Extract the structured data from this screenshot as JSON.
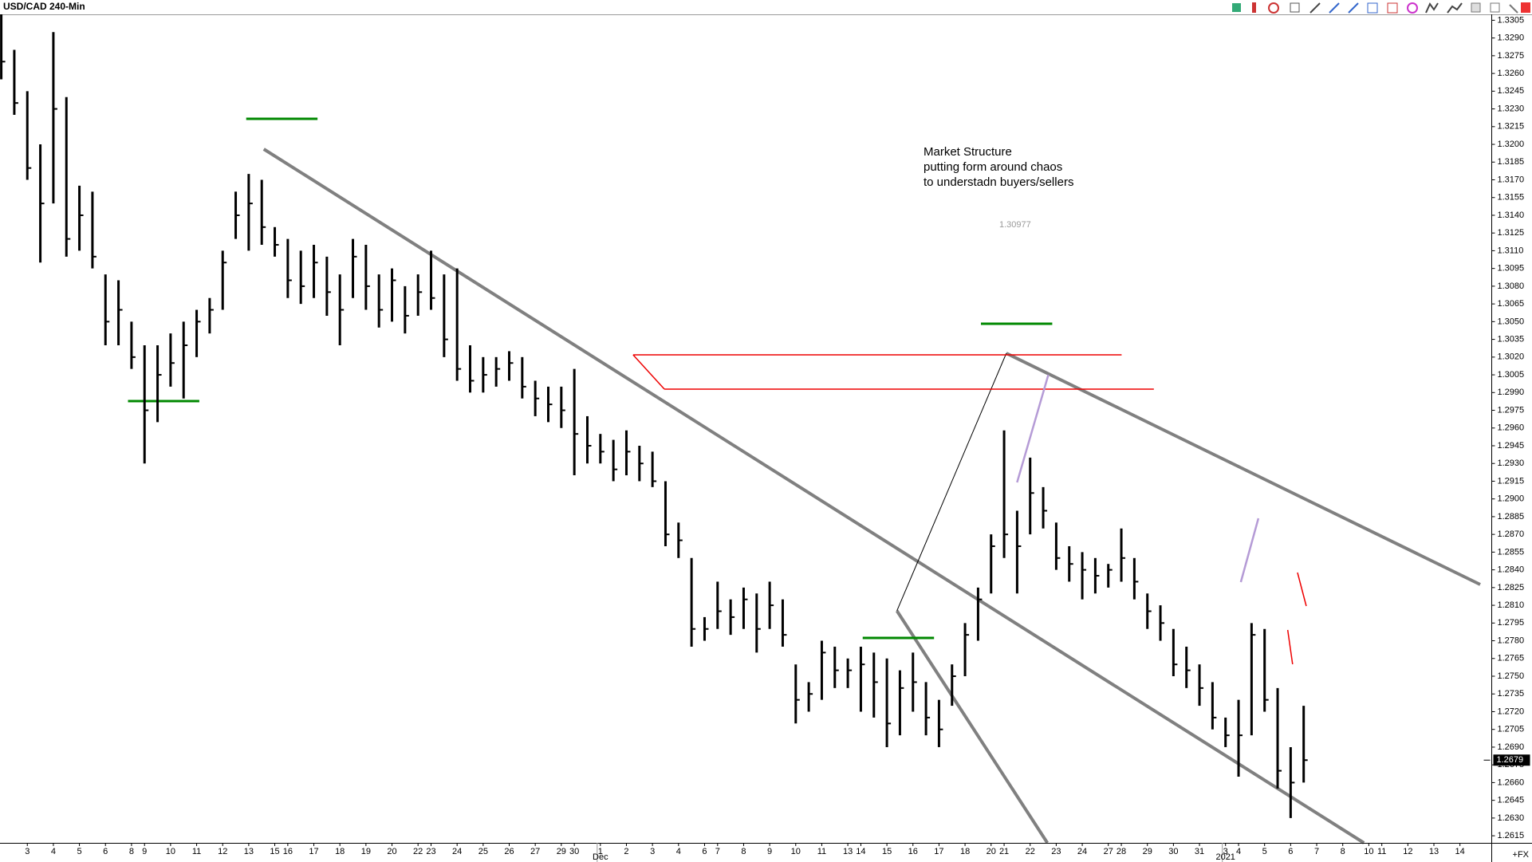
{
  "chart_data": {
    "type": "ohlc",
    "title": "USD/CAD 240-Min",
    "categories": [
      null,
      null,
      "3",
      null,
      "4",
      null,
      "5",
      null,
      "6",
      null,
      "8",
      "9",
      null,
      "10",
      null,
      "11",
      null,
      "12",
      null,
      "13",
      null,
      "15",
      "16",
      null,
      "17",
      null,
      "18",
      null,
      "19",
      null,
      "20",
      null,
      "22",
      "23",
      null,
      "24",
      null,
      "25",
      null,
      "26",
      null,
      "27",
      null,
      "29",
      "30",
      null,
      "1",
      null,
      "2",
      null,
      "3",
      null,
      "4",
      null,
      "6",
      "7",
      null,
      "8",
      null,
      "9",
      null,
      "10",
      null,
      "11",
      null,
      "13",
      "14",
      null,
      "15",
      null,
      "16",
      null,
      "17",
      null,
      "18",
      null,
      "20",
      "21",
      null,
      "22",
      null,
      "23",
      null,
      "24",
      null,
      "27",
      "28",
      null,
      "29",
      null,
      "30",
      null,
      "31",
      null,
      "3",
      "4",
      null,
      "5",
      null,
      "6",
      null,
      "7",
      null,
      "8",
      null,
      "10",
      "11",
      null,
      "12",
      null,
      "13",
      null,
      "14"
    ],
    "month_labels": [
      "Dec",
      "2021"
    ],
    "high": [
      1.331,
      1.328,
      1.3245,
      1.32,
      1.3295,
      1.324,
      1.3165,
      1.316,
      1.309,
      1.3085,
      1.305,
      1.303,
      1.303,
      1.304,
      1.305,
      1.306,
      1.307,
      1.311,
      1.316,
      1.3175,
      1.317,
      1.313,
      1.312,
      1.311,
      1.3115,
      1.3105,
      1.309,
      1.312,
      1.3115,
      1.309,
      1.3095,
      1.308,
      1.309,
      1.311,
      1.309,
      1.3095,
      1.303,
      1.302,
      1.302,
      1.3025,
      1.302,
      1.3,
      1.2995,
      1.2995,
      1.301,
      1.297,
      1.2955,
      1.295,
      1.2958,
      1.2945,
      1.294,
      1.2915,
      1.288,
      1.285,
      1.28,
      1.283,
      1.2815,
      1.2825,
      1.282,
      1.283,
      1.2815,
      1.276,
      1.2745,
      1.278,
      1.2775,
      1.2765,
      1.2775,
      1.277,
      1.2765,
      1.2755,
      1.277,
      1.2745,
      1.273,
      1.276,
      1.2795,
      1.2825,
      1.287,
      1.2958,
      1.289,
      1.2935,
      1.291,
      1.288,
      1.286,
      1.2855,
      1.285,
      1.2845,
      1.2875,
      1.285,
      1.282,
      1.281,
      1.279,
      1.2775,
      1.276,
      1.2745,
      1.2715,
      1.273,
      1.2795,
      1.279,
      1.274,
      1.269,
      1.2725,
      null,
      null,
      null,
      null,
      null,
      null,
      null,
      null,
      null,
      null,
      null,
      null
    ],
    "low": [
      1.3255,
      1.3225,
      1.317,
      1.31,
      1.315,
      1.3105,
      1.311,
      1.3095,
      1.303,
      1.303,
      1.301,
      1.293,
      1.2965,
      1.2995,
      1.2985,
      1.302,
      1.304,
      1.306,
      1.312,
      1.311,
      1.3115,
      1.3105,
      1.307,
      1.3065,
      1.307,
      1.3055,
      1.303,
      1.307,
      1.306,
      1.3045,
      1.305,
      1.304,
      1.3055,
      1.306,
      1.302,
      1.3,
      1.299,
      1.299,
      1.2995,
      1.3,
      1.2985,
      1.297,
      1.2965,
      1.296,
      1.292,
      1.293,
      1.293,
      1.2915,
      1.292,
      1.2915,
      1.291,
      1.286,
      1.285,
      1.2775,
      1.278,
      1.279,
      1.2785,
      1.279,
      1.277,
      1.279,
      1.2775,
      1.271,
      1.272,
      1.273,
      1.274,
      1.274,
      1.272,
      1.2715,
      1.269,
      1.27,
      1.272,
      1.27,
      1.269,
      1.2725,
      1.275,
      1.278,
      1.282,
      1.285,
      1.282,
      1.287,
      1.2875,
      1.284,
      1.283,
      1.2815,
      1.282,
      1.2825,
      1.283,
      1.2815,
      1.279,
      1.278,
      1.275,
      1.274,
      1.2725,
      1.2705,
      1.269,
      1.2665,
      1.27,
      1.272,
      1.2655,
      1.263,
      1.266,
      null,
      null,
      null,
      null,
      null,
      null,
      null,
      null,
      null,
      null,
      null,
      null
    ],
    "close": [
      1.327,
      1.3235,
      1.318,
      1.315,
      1.323,
      1.312,
      1.314,
      1.3105,
      1.305,
      1.306,
      1.302,
      1.2975,
      1.3005,
      1.3015,
      1.303,
      1.305,
      1.306,
      1.31,
      1.314,
      1.315,
      1.313,
      1.3115,
      1.3085,
      1.308,
      1.31,
      1.3075,
      1.306,
      1.3105,
      1.308,
      1.306,
      1.3085,
      1.3055,
      1.3075,
      1.307,
      1.3035,
      1.301,
      1.3,
      1.3005,
      1.301,
      1.3015,
      1.2995,
      1.2985,
      1.298,
      1.2975,
      1.2955,
      1.2945,
      1.294,
      1.2925,
      1.294,
      1.293,
      1.2915,
      1.287,
      1.2865,
      1.279,
      1.279,
      1.2805,
      1.28,
      1.2815,
      1.279,
      1.281,
      1.2785,
      1.273,
      1.2735,
      1.277,
      1.2755,
      1.2755,
      1.276,
      1.2745,
      1.271,
      1.274,
      1.2745,
      1.2715,
      1.2705,
      1.275,
      1.2785,
      1.2815,
      1.286,
      1.287,
      1.286,
      1.2905,
      1.289,
      1.285,
      1.2845,
      1.284,
      1.2835,
      1.284,
      1.285,
      1.283,
      1.2805,
      1.2795,
      1.276,
      1.2755,
      1.274,
      1.2715,
      1.27,
      1.27,
      1.2785,
      1.273,
      1.267,
      1.266,
      1.2679,
      null,
      null,
      null,
      null,
      null,
      null,
      null,
      null,
      null,
      null,
      null,
      null
    ],
    "last_price": 1.2679,
    "ylim": [
      1.2609,
      1.331
    ],
    "yticks": [
      1.3305,
      {
        "value": 1.329,
        "label": "1.3290"
      },
      1.3275,
      {
        "value": 1.326,
        "label": "1.3260"
      },
      1.3245,
      {
        "value": 1.323,
        "label": "1.3230"
      },
      1.3215,
      {
        "value": 1.32,
        "label": "1.3200"
      },
      1.3185,
      {
        "value": 1.317,
        "label": "1.3170"
      },
      1.3155,
      {
        "value": 1.314,
        "label": "1.3140"
      },
      1.3125,
      {
        "value": 1.311,
        "label": "1.3110"
      },
      1.3095,
      {
        "value": 1.308,
        "label": "1.3080"
      },
      1.3065,
      {
        "value": 1.305,
        "label": "1.3050"
      },
      1.3035,
      {
        "value": 1.302,
        "label": "1.3020"
      },
      1.3005,
      {
        "value": 1.299,
        "label": "1.2990"
      },
      1.2975,
      {
        "value": 1.296,
        "label": "1.2960"
      },
      1.2945,
      {
        "value": 1.293,
        "label": "1.2930"
      },
      1.2915,
      {
        "value": 1.29,
        "label": "1.2900"
      },
      1.2885,
      {
        "value": 1.287,
        "label": "1.2870"
      },
      1.2855,
      {
        "value": 1.284,
        "label": "1.2840"
      },
      1.2825,
      {
        "value": 1.281,
        "label": "1.2810"
      },
      1.2795,
      {
        "value": 1.278,
        "label": "1.2780"
      },
      1.2765,
      {
        "value": 1.275,
        "label": "1.2750"
      },
      1.2735,
      {
        "value": 1.272,
        "label": "1.2720"
      },
      1.2705,
      {
        "value": 1.269,
        "label": "1.2690"
      },
      1.2675,
      {
        "value": 1.266,
        "label": "1.2660"
      },
      1.2645,
      {
        "value": 1.263,
        "label": "1.2630"
      },
      1.2615
    ],
    "annotations": [
      "Market Structure",
      "putting form around chaos",
      "to understadn buyers/sellers"
    ],
    "price_note": "1.30977",
    "symbol_suffix": "+FX",
    "bar_color": "#000000",
    "grid": false
  }
}
